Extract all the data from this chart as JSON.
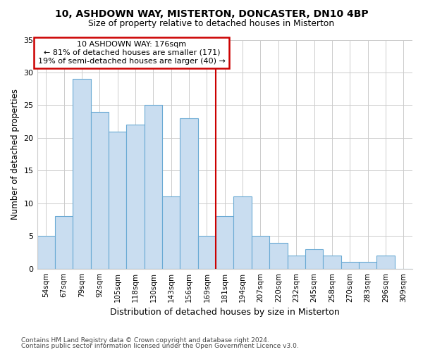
{
  "title1": "10, ASHDOWN WAY, MISTERTON, DONCASTER, DN10 4BP",
  "title2": "Size of property relative to detached houses in Misterton",
  "xlabel": "Distribution of detached houses by size in Misterton",
  "ylabel": "Number of detached properties",
  "categories": [
    "54sqm",
    "67sqm",
    "79sqm",
    "92sqm",
    "105sqm",
    "118sqm",
    "130sqm",
    "143sqm",
    "156sqm",
    "169sqm",
    "181sqm",
    "194sqm",
    "207sqm",
    "220sqm",
    "232sqm",
    "245sqm",
    "258sqm",
    "270sqm",
    "283sqm",
    "296sqm",
    "309sqm"
  ],
  "values": [
    5,
    8,
    29,
    24,
    21,
    22,
    25,
    11,
    23,
    5,
    8,
    11,
    5,
    4,
    2,
    3,
    2,
    1,
    1,
    2,
    0
  ],
  "bar_color": "#c9ddf0",
  "bar_edge_color": "#6aaad4",
  "vline_index": 10,
  "ylim": [
    0,
    35
  ],
  "yticks": [
    0,
    5,
    10,
    15,
    20,
    25,
    30,
    35
  ],
  "annotation_line1": "10 ASHDOWN WAY: 176sqm",
  "annotation_line2": "← 81% of detached houses are smaller (171)",
  "annotation_line3": "19% of semi-detached houses are larger (40) →",
  "annotation_box_color": "#ffffff",
  "annotation_box_edge_color": "#cc0000",
  "vline_color": "#cc0000",
  "footer1": "Contains HM Land Registry data © Crown copyright and database right 2024.",
  "footer2": "Contains public sector information licensed under the Open Government Licence v3.0.",
  "bg_color": "#ffffff",
  "plot_bg_color": "#ffffff",
  "grid_color": "#cccccc"
}
